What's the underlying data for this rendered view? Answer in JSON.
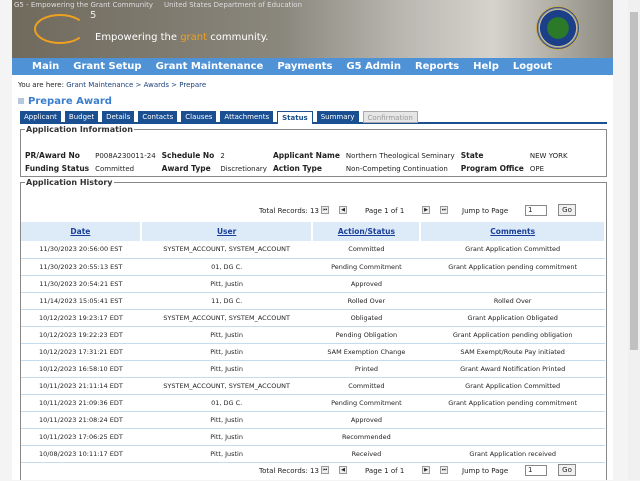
{
  "banner": {
    "alt_g5": "G5 - Empowering the Grant Community",
    "alt_ed": "United States Department of Education",
    "logo_sup": "5",
    "tagline_pre": "Empowering the ",
    "tagline_grant": "grant",
    "tagline_post": " community."
  },
  "nav": [
    "Main",
    "Grant Setup",
    "Grant Maintenance",
    "Payments",
    "G5 Admin",
    "Reports",
    "Help",
    "Logout"
  ],
  "breadcrumb": {
    "prefix": "You are here: ",
    "path": "Grant Maintenance > Awards > Prepare"
  },
  "page_title": "Prepare Award",
  "tabs": [
    {
      "label": "Applicant"
    },
    {
      "label": "Budget"
    },
    {
      "label": "Details"
    },
    {
      "label": "Contacts"
    },
    {
      "label": "Clauses"
    },
    {
      "label": "Attachments"
    },
    {
      "label": "Status",
      "active": true
    },
    {
      "label": "Summary"
    },
    {
      "label": "Confirmation",
      "disabled": true
    }
  ],
  "info": {
    "legend": "Application Information",
    "fields": [
      [
        "PR/Award No",
        "P008A230011-24",
        "Schedule No",
        "2",
        "Applicant Name",
        "Northern Theological Seminary",
        "State",
        "NEW YORK"
      ],
      [
        "Funding Status",
        "Committed",
        "Award Type",
        "Discretionary",
        "Action Type",
        "Non-Competing Continuation",
        "Program Office",
        "OPE"
      ]
    ]
  },
  "history": {
    "legend": "Application History",
    "pager": {
      "total": "Total Records: 13",
      "page": "Page 1 of 1",
      "jump_label": "Jump to Page",
      "jump_value": "1",
      "go": "Go"
    },
    "columns": [
      "Date",
      "User",
      "Action/Status",
      "Comments"
    ],
    "rows": [
      [
        "11/30/2023 20:56:00 EST",
        "SYSTEM_ACCOUNT, SYSTEM_ACCOUNT",
        "Committed",
        "Grant Application Committed"
      ],
      [
        "11/30/2023 20:55:13 EST",
        "01, DG C.",
        "Pending Commitment",
        "Grant Application pending commitment"
      ],
      [
        "11/30/2023 20:54:21 EST",
        "Pitt, Justin",
        "Approved",
        ""
      ],
      [
        "11/14/2023 15:05:41 EST",
        "11, DG C.",
        "Rolled Over",
        "Rolled Over"
      ],
      [
        "10/12/2023 19:23:17 EDT",
        "SYSTEM_ACCOUNT, SYSTEM_ACCOUNT",
        "Obligated",
        "Grant Application Obligated"
      ],
      [
        "10/12/2023 19:22:23 EDT",
        "Pitt, Justin",
        "Pending Obligation",
        "Grant Application pending obligation"
      ],
      [
        "10/12/2023 17:31:21 EDT",
        "Pitt, Justin",
        "SAM Exemption Change",
        "SAM Exempt/Route Pay initiated"
      ],
      [
        "10/12/2023 16:58:10 EDT",
        "Pitt, Justin",
        "Printed",
        "Grant Award Notification Printed"
      ],
      [
        "10/11/2023 21:11:14 EDT",
        "SYSTEM_ACCOUNT, SYSTEM_ACCOUNT",
        "Committed",
        "Grant Application Committed"
      ],
      [
        "10/11/2023 21:09:36 EDT",
        "01, DG C.",
        "Pending Commitment",
        "Grant Application pending commitment"
      ],
      [
        "10/11/2023 21:08:24 EDT",
        "Pitt, Justin",
        "Approved",
        ""
      ],
      [
        "10/11/2023 17:06:25 EDT",
        "Pitt, Justin",
        "Recommended",
        ""
      ],
      [
        "10/08/2023 10:11:17 EDT",
        "Pitt, Justin",
        "Received",
        "Grant Application received"
      ]
    ]
  },
  "colors": {
    "nav": "#4f93d6",
    "tab": "#1a4f91",
    "title": "#3a7ed0",
    "header_row": "#dcebf7"
  }
}
